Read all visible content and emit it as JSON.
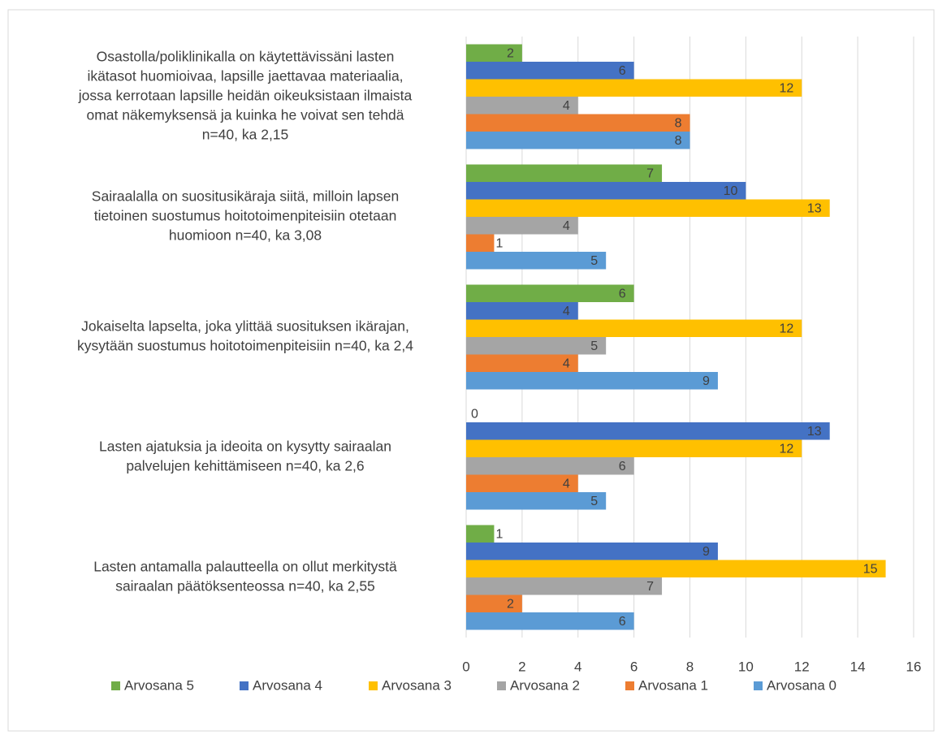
{
  "chart_data": {
    "type": "bar",
    "orientation": "horizontal",
    "categories": [
      [
        "Osastolla/poliklinikalla on käytettävissäni lasten",
        "ikätasot huomioivaa, lapsille jaettavaa materiaalia,",
        "jossa kerrotaan lapsille heidän oikeuksistaan ilmaista",
        "omat näkemyksensä ja kuinka he voivat sen tehdä",
        "n=40, ka 2,15"
      ],
      [
        "Sairaalalla on suositusikäraja siitä, milloin lapsen",
        "tietoinen suostumus hoitotoimenpiteisiin otetaan",
        "huomioon n=40, ka 3,08"
      ],
      [
        "Jokaiselta lapselta, joka ylittää suosituksen ikärajan,",
        "kysytään suostumus hoitotoimenpiteisiin n=40, ka 2,4"
      ],
      [
        "Lasten ajatuksia ja ideoita on kysytty sairaalan",
        "palvelujen kehittämiseen n=40, ka 2,6"
      ],
      [
        "Lasten antamalla palautteella on ollut merkitystä",
        "sairaalan päätöksenteossa n=40, ka 2,55"
      ]
    ],
    "series": [
      {
        "name": "Arvosana 5",
        "color": "#70ad47",
        "values": [
          2,
          7,
          6,
          0,
          1
        ]
      },
      {
        "name": "Arvosana 4",
        "color": "#4472c4",
        "values": [
          6,
          10,
          4,
          13,
          9
        ]
      },
      {
        "name": "Arvosana 3",
        "color": "#ffc000",
        "values": [
          12,
          13,
          12,
          12,
          15
        ]
      },
      {
        "name": "Arvosana 2",
        "color": "#a5a5a5",
        "values": [
          4,
          4,
          5,
          6,
          7
        ]
      },
      {
        "name": "Arvosana 1",
        "color": "#ed7d31",
        "values": [
          8,
          1,
          4,
          4,
          2
        ]
      },
      {
        "name": "Arvosana 0",
        "color": "#5b9bd5",
        "values": [
          8,
          5,
          9,
          5,
          6
        ]
      }
    ],
    "xlim": [
      0,
      16
    ],
    "xticks": [
      0,
      2,
      4,
      6,
      8,
      10,
      12,
      14,
      16
    ],
    "grid": true,
    "legend": "bottom"
  }
}
